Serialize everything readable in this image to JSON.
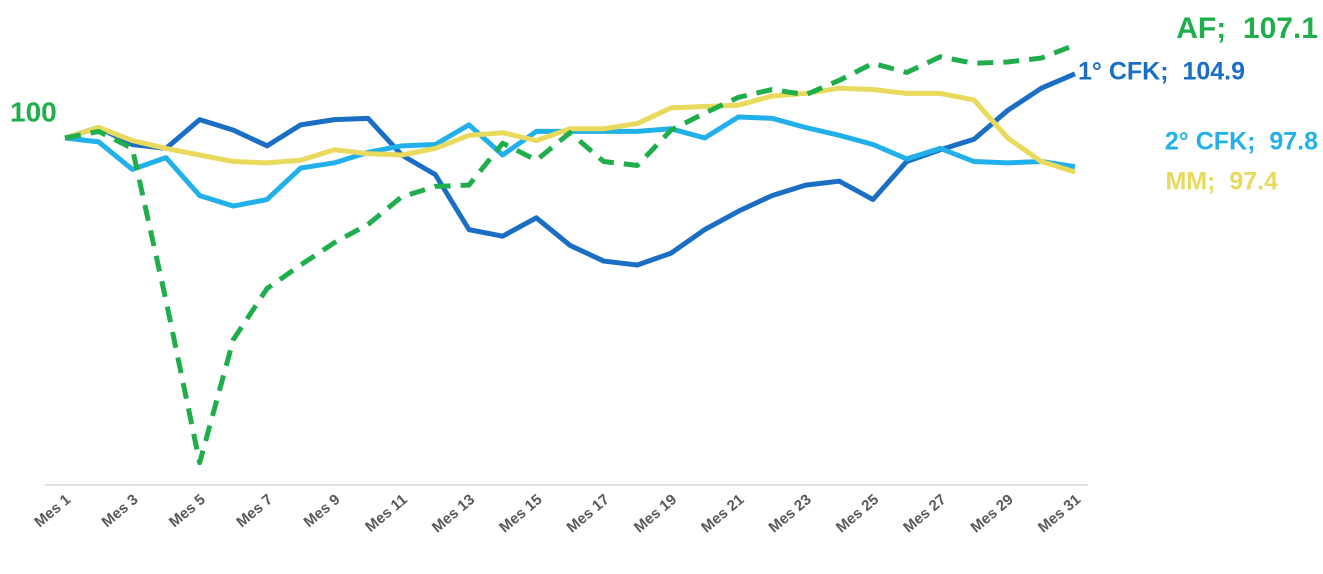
{
  "chart_data": {
    "type": "line",
    "start_label": "100",
    "categories": [
      "Mes 1",
      null,
      "Mes 3",
      null,
      "Mes 5",
      null,
      "Mes 7",
      null,
      "Mes 9",
      null,
      "Mes 11",
      null,
      "Mes 13",
      null,
      "Mes 15",
      null,
      "Mes 17",
      null,
      "Mes 19",
      null,
      "Mes 21",
      null,
      "Mes 23",
      null,
      "Mes 25",
      null,
      "Mes 27",
      null,
      "Mes 29",
      null,
      "Mes 31"
    ],
    "ylim": [
      73.5,
      110
    ],
    "series": [
      {
        "label": "1° CFK;  104.9",
        "color": "#1a6fc4",
        "dashed": false,
        "values": [
          100,
          100.8,
          99.5,
          99.2,
          101.4,
          100.6,
          99.4,
          101.0,
          101.4,
          101.5,
          98.7,
          97.2,
          93.0,
          92.5,
          93.9,
          91.8,
          90.6,
          90.3,
          91.2,
          93.0,
          94.4,
          95.6,
          96.4,
          96.7,
          95.3,
          98.2,
          99.1,
          99.9,
          102.1,
          103.8,
          104.9
        ]
      },
      {
        "label": "2° CFK;  97.8",
        "color": "#22b0ea",
        "dashed": false,
        "values": [
          100,
          99.7,
          97.6,
          98.5,
          95.6,
          94.8,
          95.3,
          97.7,
          98.1,
          98.9,
          99.4,
          99.5,
          101.0,
          98.7,
          100.5,
          100.5,
          100.5,
          100.5,
          100.7,
          100,
          101.6,
          101.5,
          100.8,
          100.2,
          99.5,
          98.4,
          99.2,
          98.2,
          98.1,
          98.2,
          97.8
        ]
      },
      {
        "label": "MM;  97.4",
        "color": "#e9d95c",
        "dashed": false,
        "values": [
          100,
          100.8,
          99.8,
          99.2,
          98.7,
          98.2,
          98.1,
          98.3,
          99.1,
          98.8,
          98.7,
          99.2,
          100.2,
          100.4,
          99.8,
          100.7,
          100.7,
          101.1,
          102.3,
          102.4,
          102.5,
          103.2,
          103.4,
          103.8,
          103.7,
          103.4,
          103.4,
          102.9,
          100,
          98.2,
          97.4
        ]
      },
      {
        "label": "AF;  107.1",
        "color": "#1fae4b",
        "dashed": true,
        "values": [
          100,
          100.5,
          99.2,
          87.6,
          75.2,
          84.6,
          88.5,
          90.3,
          92.0,
          93.4,
          95.5,
          96.3,
          96.4,
          99.6,
          98.3,
          100.4,
          98.2,
          97.9,
          100.6,
          101.9,
          103.1,
          103.7,
          103.3,
          104.4,
          105.7,
          105.0,
          106.2,
          105.7,
          105.8,
          106.1,
          107.1
        ]
      }
    ]
  }
}
